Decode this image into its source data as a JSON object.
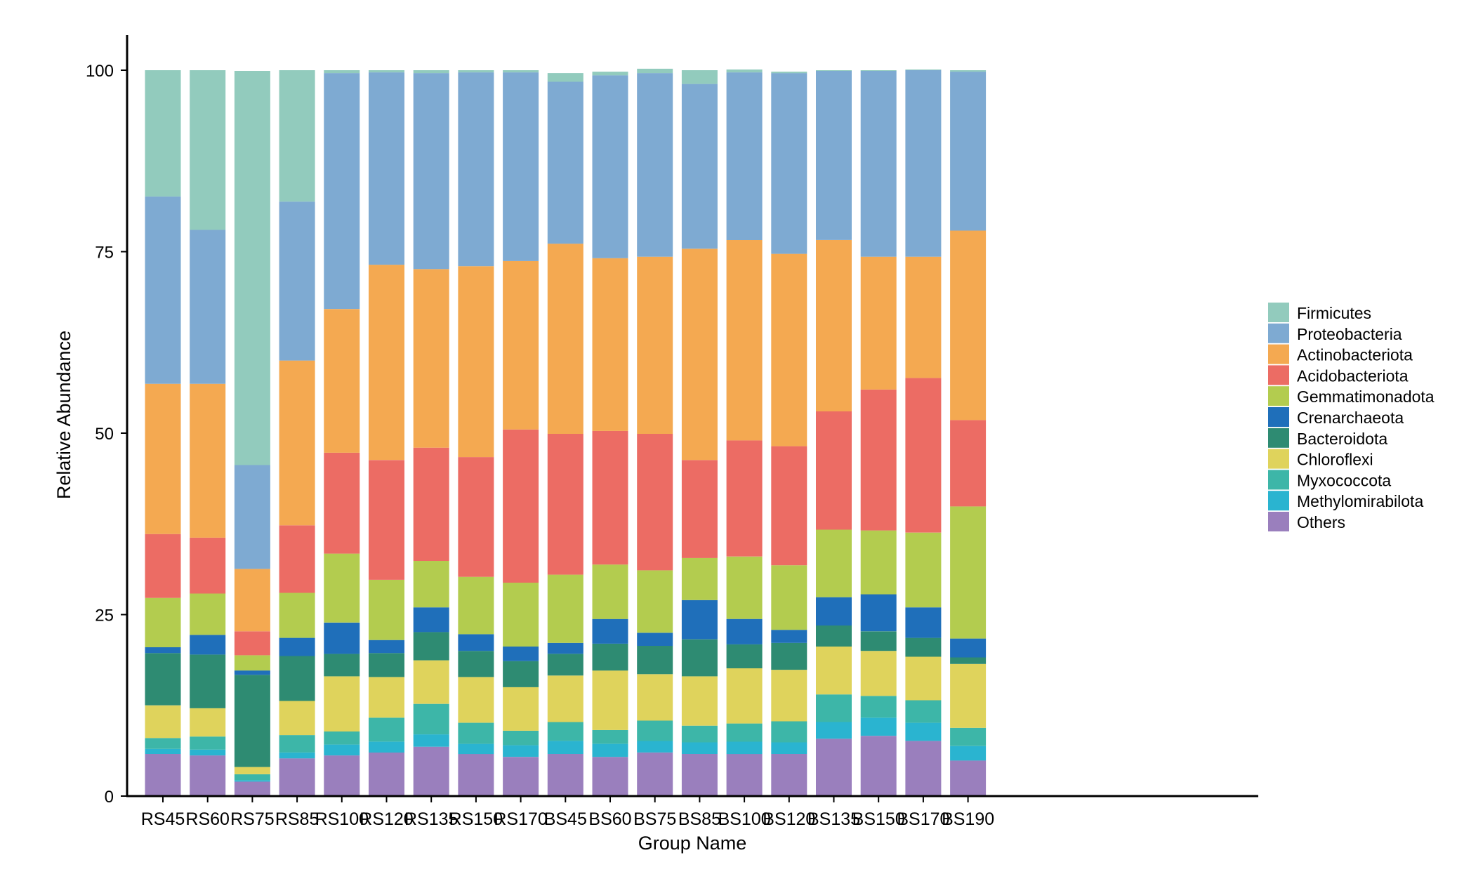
{
  "chart_data": {
    "type": "bar",
    "stacked": true,
    "title": "",
    "xlabel": "Group Name",
    "ylabel": "Relative Abundance",
    "ylim": [
      0,
      100
    ],
    "yticks": [
      0,
      25,
      50,
      75,
      100
    ],
    "grid": false,
    "legend_position": "right",
    "categories": [
      "RS45",
      "RS60",
      "RS75",
      "RS85",
      "RS100",
      "RS120",
      "RS135",
      "RS150",
      "RS170",
      "BS45",
      "BS60",
      "BS75",
      "BS85",
      "BS100",
      "BS120",
      "BS135",
      "BS150",
      "BS170",
      "BS190"
    ],
    "series": [
      {
        "name": "Others",
        "color": "#9a7fbd",
        "values": [
          5.8,
          5.6,
          2.0,
          5.2,
          5.6,
          6.0,
          6.8,
          5.8,
          5.4,
          5.8,
          5.4,
          6.0,
          5.8,
          5.8,
          5.8,
          7.9,
          8.3,
          7.6,
          4.9
        ]
      },
      {
        "name": "Methylomirabilota",
        "color": "#2ab4d0",
        "values": [
          0.7,
          0.8,
          0.2,
          0.8,
          1.5,
          1.5,
          1.7,
          1.4,
          1.6,
          1.8,
          1.8,
          1.6,
          1.6,
          1.7,
          1.6,
          2.3,
          2.5,
          2.5,
          2.0
        ]
      },
      {
        "name": "Myxococcota",
        "color": "#3db6a8",
        "values": [
          1.5,
          1.8,
          0.8,
          2.4,
          1.8,
          3.3,
          4.2,
          2.9,
          2.0,
          2.6,
          1.9,
          2.8,
          2.3,
          2.5,
          2.9,
          3.8,
          3.0,
          3.1,
          2.5
        ]
      },
      {
        "name": "Chloroflexi",
        "color": "#dfd35c",
        "values": [
          4.5,
          3.9,
          1.0,
          4.7,
          7.6,
          5.6,
          6.0,
          6.3,
          6.0,
          6.4,
          8.2,
          6.4,
          6.8,
          7.6,
          7.1,
          6.6,
          6.2,
          6.0,
          8.8
        ]
      },
      {
        "name": "Bacteroidota",
        "color": "#2e8b72",
        "values": [
          7.2,
          7.4,
          12.7,
          6.2,
          3.1,
          3.3,
          3.9,
          3.6,
          3.6,
          3.0,
          3.7,
          3.9,
          5.1,
          3.3,
          3.7,
          2.9,
          2.7,
          2.6,
          0.9
        ]
      },
      {
        "name": "Crenarchaeota",
        "color": "#1f6fba",
        "values": [
          0.8,
          2.7,
          0.6,
          2.5,
          4.3,
          1.8,
          3.4,
          2.3,
          2.0,
          1.5,
          3.4,
          1.8,
          5.4,
          3.5,
          1.8,
          3.9,
          5.1,
          4.2,
          2.6
        ]
      },
      {
        "name": "Gemmatimonadota",
        "color": "#b3cc4f",
        "values": [
          6.8,
          5.7,
          2.1,
          6.2,
          9.5,
          8.3,
          6.4,
          7.9,
          8.8,
          9.4,
          7.5,
          8.6,
          5.8,
          8.6,
          8.9,
          9.3,
          8.8,
          10.3,
          18.2
        ]
      },
      {
        "name": "Acidobacteriota",
        "color": "#ec6c64",
        "values": [
          8.8,
          7.7,
          3.3,
          9.3,
          13.9,
          16.5,
          15.6,
          16.5,
          21.1,
          19.4,
          18.4,
          18.8,
          13.5,
          16.0,
          16.4,
          16.3,
          19.4,
          21.3,
          11.9
        ]
      },
      {
        "name": "Actinobacteriota",
        "color": "#f4a951",
        "values": [
          20.7,
          21.2,
          8.6,
          22.7,
          19.8,
          26.9,
          24.6,
          26.3,
          23.2,
          26.2,
          23.8,
          24.4,
          29.1,
          27.6,
          26.5,
          23.6,
          18.3,
          16.7,
          26.1
        ]
      },
      {
        "name": "Proteobacteria",
        "color": "#7eaad2",
        "values": [
          25.8,
          21.2,
          14.3,
          21.9,
          32.5,
          26.5,
          27.0,
          26.7,
          26.0,
          22.3,
          25.2,
          25.3,
          22.7,
          23.1,
          24.9,
          23.3,
          25.6,
          25.7,
          21.9
        ]
      },
      {
        "name": "Firmicutes",
        "color": "#92cbbd",
        "values": [
          17.4,
          22.0,
          54.3,
          18.1,
          0.4,
          0.3,
          0.4,
          0.3,
          0.3,
          1.2,
          0.5,
          0.6,
          1.9,
          0.4,
          0.2,
          0.1,
          0.1,
          0.1,
          0.2
        ]
      }
    ]
  },
  "legend": {
    "items": [
      "Firmicutes",
      "Proteobacteria",
      "Actinobacteriota",
      "Acidobacteriota",
      "Gemmatimonadota",
      "Crenarchaeota",
      "Bacteroidota",
      "Chloroflexi",
      "Myxococcota",
      "Methylomirabilota",
      "Others"
    ]
  }
}
